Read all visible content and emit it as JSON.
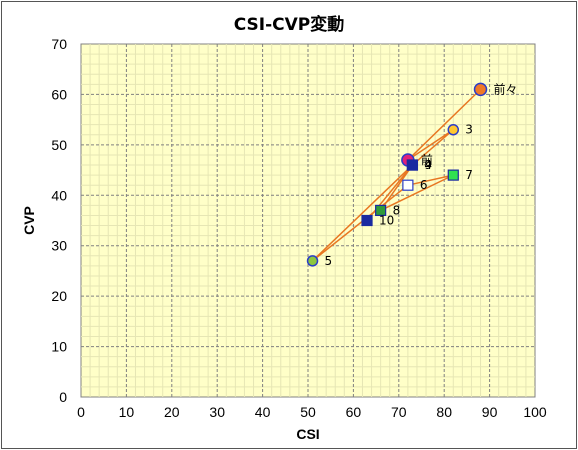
{
  "chart_data": {
    "type": "scatter",
    "title": "CSI-CVP変動",
    "xlabel": "CSI",
    "ylabel": "CVP",
    "xlim": [
      0,
      100
    ],
    "ylim": [
      0,
      70
    ],
    "x_ticks": [
      0,
      10,
      20,
      30,
      40,
      50,
      60,
      70,
      80,
      90,
      100
    ],
    "y_ticks": [
      0,
      10,
      20,
      30,
      40,
      50,
      60,
      70
    ],
    "grid": true,
    "line_color": "#e87722",
    "plot_background": "#ffffc8",
    "points": [
      {
        "label": "前々",
        "x": 88,
        "y": 61,
        "marker": "circle",
        "fill": "#f07828",
        "stroke": "#2a3cc8",
        "size": 6
      },
      {
        "label": "前",
        "x": 72,
        "y": 47,
        "marker": "circle",
        "fill": "#e0207a",
        "stroke": "#2a3cc8",
        "size": 6
      },
      {
        "label": "3",
        "x": 82,
        "y": 53,
        "marker": "circle",
        "fill": "#ffc830",
        "stroke": "#2a3cc8",
        "size": 5
      },
      {
        "label": "4",
        "x": 73,
        "y": 46,
        "marker": "square",
        "fill": "#1a2aa0",
        "stroke": "#1a2aa0",
        "size": 5
      },
      {
        "label": "5",
        "x": 51,
        "y": 27,
        "marker": "circle",
        "fill": "#8cc63e",
        "stroke": "#2a3cc8",
        "size": 5
      },
      {
        "label": "6",
        "x": 72,
        "y": 42,
        "marker": "square",
        "fill": "#ffffff",
        "stroke": "#2a3cc8",
        "size": 5
      },
      {
        "label": "7",
        "x": 82,
        "y": 44,
        "marker": "square",
        "fill": "#30e050",
        "stroke": "#1a2aa0",
        "size": 5
      },
      {
        "label": "8",
        "x": 66,
        "y": 37,
        "marker": "square",
        "fill": "#2e9a3a",
        "stroke": "#1a2aa0",
        "size": 5
      },
      {
        "label": "9",
        "x": 73,
        "y": 46,
        "marker": "square",
        "fill": "#1a2aa0",
        "stroke": "#1a2aa0",
        "size": 5
      },
      {
        "label": "10",
        "x": 63,
        "y": 35,
        "marker": "square",
        "fill": "#1a2aa0",
        "stroke": "#1a2aa0",
        "size": 5
      }
    ],
    "path_order": [
      "前々",
      "前",
      "3",
      "4",
      "5",
      "6",
      "7",
      "8",
      "9",
      "10"
    ]
  }
}
